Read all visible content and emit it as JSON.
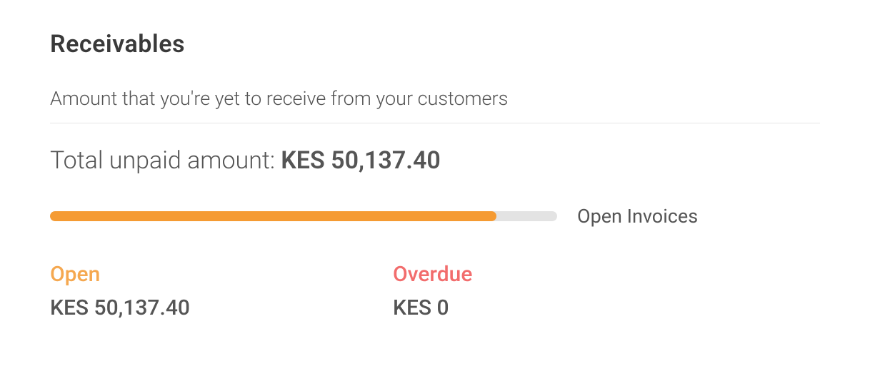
{
  "header": {
    "title": "Receivables",
    "subtitle": "Amount that you're yet to receive from your customers"
  },
  "total": {
    "label": "Total unpaid amount: ",
    "amount": "KES 50,137.40"
  },
  "progress": {
    "label": "Open Invoices",
    "fill_percent": 88,
    "fill_color": "#f59b33",
    "track_color": "#e3e3e3",
    "track_width": 710,
    "track_height": 14
  },
  "stats": {
    "open": {
      "label": "Open",
      "label_color": "#f5a850",
      "value": "KES 50,137.40"
    },
    "overdue": {
      "label": "Overdue",
      "label_color": "#f26d6d",
      "value": "KES 0"
    }
  },
  "colors": {
    "text_dark": "#3a3a3a",
    "text_medium": "#555555",
    "divider": "#e6e6e6",
    "background": "#ffffff"
  }
}
